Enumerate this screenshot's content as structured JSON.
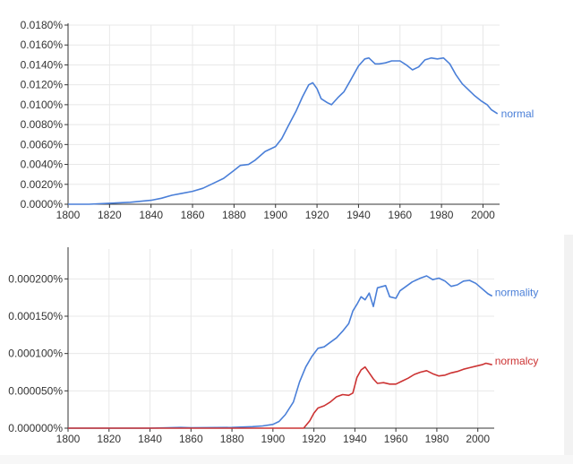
{
  "chart_data": [
    {
      "type": "line",
      "xlim": [
        1800,
        2008
      ],
      "ylim": [
        0,
        0.018
      ],
      "x_ticks": [
        "1800",
        "1820",
        "1840",
        "1860",
        "1880",
        "1900",
        "1920",
        "1940",
        "1960",
        "1980",
        "2000"
      ],
      "y_ticks": [
        "0.0000%",
        "0.0020%",
        "0.0040%",
        "0.0060%",
        "0.0080%",
        "0.0100%",
        "0.0120%",
        "0.0140%",
        "0.0160%",
        "0.0180%"
      ],
      "grid": true,
      "series": [
        {
          "name": "normal",
          "color": "#4a7fd8",
          "points": [
            [
              1800,
              0
            ],
            [
              1810,
              0
            ],
            [
              1820,
              0.0001
            ],
            [
              1830,
              0.0002
            ],
            [
              1840,
              0.0004
            ],
            [
              1845,
              0.0006
            ],
            [
              1850,
              0.0009
            ],
            [
              1855,
              0.0011
            ],
            [
              1860,
              0.0013
            ],
            [
              1865,
              0.0016
            ],
            [
              1870,
              0.0021
            ],
            [
              1875,
              0.0026
            ],
            [
              1880,
              0.0034
            ],
            [
              1883,
              0.0039
            ],
            [
              1887,
              0.004
            ],
            [
              1890,
              0.0044
            ],
            [
              1895,
              0.0053
            ],
            [
              1900,
              0.0058
            ],
            [
              1903,
              0.0066
            ],
            [
              1906,
              0.0078
            ],
            [
              1910,
              0.0094
            ],
            [
              1913,
              0.0108
            ],
            [
              1916,
              0.012
            ],
            [
              1918,
              0.0122
            ],
            [
              1920,
              0.0116
            ],
            [
              1922,
              0.0106
            ],
            [
              1925,
              0.0102
            ],
            [
              1927,
              0.01
            ],
            [
              1930,
              0.0107
            ],
            [
              1933,
              0.0113
            ],
            [
              1936,
              0.0124
            ],
            [
              1940,
              0.0139
            ],
            [
              1943,
              0.0146
            ],
            [
              1945,
              0.0147
            ],
            [
              1948,
              0.0141
            ],
            [
              1950,
              0.0141
            ],
            [
              1953,
              0.0142
            ],
            [
              1956,
              0.0144
            ],
            [
              1960,
              0.0144
            ],
            [
              1963,
              0.014
            ],
            [
              1966,
              0.0135
            ],
            [
              1969,
              0.0138
            ],
            [
              1972,
              0.0145
            ],
            [
              1975,
              0.0147
            ],
            [
              1978,
              0.0146
            ],
            [
              1981,
              0.0147
            ],
            [
              1984,
              0.0141
            ],
            [
              1987,
              0.013
            ],
            [
              1990,
              0.0121
            ],
            [
              1993,
              0.0115
            ],
            [
              1996,
              0.0109
            ],
            [
              1999,
              0.0104
            ],
            [
              2002,
              0.01
            ],
            [
              2004,
              0.0095
            ],
            [
              2007,
              0.0091
            ]
          ]
        }
      ]
    },
    {
      "type": "line",
      "xlim": [
        1800,
        2008
      ],
      "ylim": [
        0,
        0.00024
      ],
      "x_ticks": [
        "1800",
        "1820",
        "1840",
        "1860",
        "1880",
        "1900",
        "1920",
        "1940",
        "1960",
        "1980",
        "2000"
      ],
      "y_ticks": [
        "0.000000%",
        "0.000050%",
        "0.000100%",
        "0.000150%",
        "0.000200%"
      ],
      "grid": true,
      "series": [
        {
          "name": "normality",
          "color": "#4a7fd8",
          "points": [
            [
              1800,
              0
            ],
            [
              1840,
              0
            ],
            [
              1855,
              1e-06
            ],
            [
              1860,
              5e-07
            ],
            [
              1880,
              1e-06
            ],
            [
              1890,
              2e-06
            ],
            [
              1895,
              3e-06
            ],
            [
              1900,
              5e-06
            ],
            [
              1903,
              9e-06
            ],
            [
              1906,
              1.8e-05
            ],
            [
              1910,
              3.5e-05
            ],
            [
              1913,
              6.2e-05
            ],
            [
              1916,
              8.2e-05
            ],
            [
              1919,
              9.6e-05
            ],
            [
              1922,
              0.000107
            ],
            [
              1925,
              0.000109
            ],
            [
              1928,
              0.000115
            ],
            [
              1931,
              0.000121
            ],
            [
              1934,
              0.00013
            ],
            [
              1937,
              0.00014
            ],
            [
              1939,
              0.000157
            ],
            [
              1941,
              0.000166
            ],
            [
              1943,
              0.000176
            ],
            [
              1945,
              0.000172
            ],
            [
              1947,
              0.000181
            ],
            [
              1949,
              0.000163
            ],
            [
              1951,
              0.000188
            ],
            [
              1955,
              0.000191
            ],
            [
              1957,
              0.000176
            ],
            [
              1960,
              0.000174
            ],
            [
              1962,
              0.000184
            ],
            [
              1965,
              0.00019
            ],
            [
              1968,
              0.000196
            ],
            [
              1972,
              0.000201
            ],
            [
              1975,
              0.000204
            ],
            [
              1978,
              0.000199
            ],
            [
              1981,
              0.000201
            ],
            [
              1984,
              0.000197
            ],
            [
              1987,
              0.00019
            ],
            [
              1990,
              0.000192
            ],
            [
              1993,
              0.000197
            ],
            [
              1996,
              0.000198
            ],
            [
              1999,
              0.000194
            ],
            [
              2002,
              0.000187
            ],
            [
              2005,
              0.00018
            ],
            [
              2007,
              0.000177
            ]
          ]
        },
        {
          "name": "normalcy",
          "color": "#cc3333",
          "points": [
            [
              1800,
              0
            ],
            [
              1900,
              0
            ],
            [
              1915,
              0
            ],
            [
              1918,
              1e-05
            ],
            [
              1920,
              2e-05
            ],
            [
              1922,
              2.7e-05
            ],
            [
              1925,
              3e-05
            ],
            [
              1928,
              3.5e-05
            ],
            [
              1931,
              4.2e-05
            ],
            [
              1934,
              4.5e-05
            ],
            [
              1937,
              4.4e-05
            ],
            [
              1939,
              4.7e-05
            ],
            [
              1941,
              6.8e-05
            ],
            [
              1943,
              7.8e-05
            ],
            [
              1945,
              8.2e-05
            ],
            [
              1947,
              7.4e-05
            ],
            [
              1949,
              6.6e-05
            ],
            [
              1951,
              6e-05
            ],
            [
              1954,
              6.1e-05
            ],
            [
              1957,
              5.9e-05
            ],
            [
              1960,
              5.9e-05
            ],
            [
              1963,
              6.3e-05
            ],
            [
              1966,
              6.7e-05
            ],
            [
              1969,
              7.2e-05
            ],
            [
              1972,
              7.5e-05
            ],
            [
              1975,
              7.7e-05
            ],
            [
              1978,
              7.3e-05
            ],
            [
              1981,
              7e-05
            ],
            [
              1984,
              7.1e-05
            ],
            [
              1987,
              7.4e-05
            ],
            [
              1990,
              7.6e-05
            ],
            [
              1993,
              7.9e-05
            ],
            [
              1996,
              8.1e-05
            ],
            [
              1999,
              8.3e-05
            ],
            [
              2002,
              8.5e-05
            ],
            [
              2004,
              8.7e-05
            ],
            [
              2007,
              8.5e-05
            ]
          ]
        }
      ]
    }
  ]
}
